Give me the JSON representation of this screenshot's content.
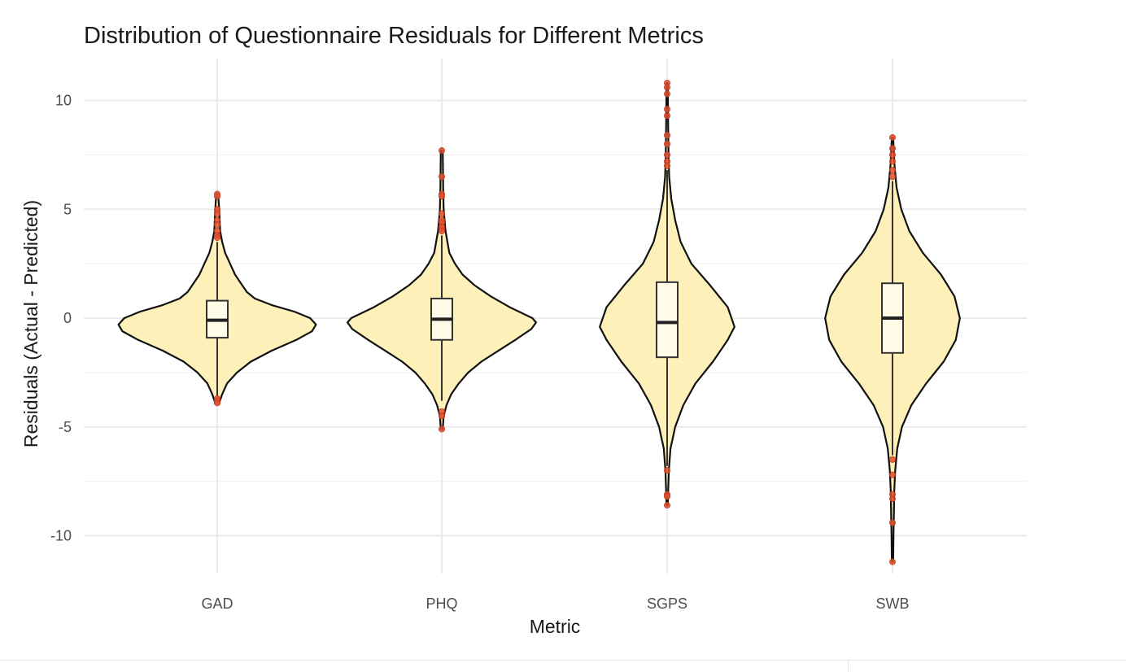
{
  "chart_data": {
    "type": "violin",
    "title": "Distribution of Questionnaire Residuals for Different Metrics",
    "xlabel": "Metric",
    "ylabel": "Residuals (Actual - Predicted)",
    "categories": [
      "GAD",
      "PHQ",
      "SGPS",
      "SWB"
    ],
    "ylim": [
      -12,
      12
    ],
    "yticks": [
      10,
      5,
      0,
      -5,
      -10
    ],
    "ytick_labels": [
      "10",
      "5",
      "0",
      "-5",
      "-10"
    ],
    "grid": true,
    "legend": "none",
    "colors": {
      "violin_fill": "#fdf0b8",
      "violin_stroke": "#111111",
      "box_fill": "#fffbe6",
      "box_stroke": "#333333",
      "outlier": "#e0502e",
      "grid": "#ebebeb"
    },
    "violins": [
      {
        "category": "GAD",
        "density_profile": [
          [
            -3.9,
            0.02
          ],
          [
            -3.5,
            0.05
          ],
          [
            -3.0,
            0.1
          ],
          [
            -2.5,
            0.2
          ],
          [
            -2.0,
            0.34
          ],
          [
            -1.5,
            0.55
          ],
          [
            -1.0,
            0.8
          ],
          [
            -0.6,
            0.96
          ],
          [
            -0.3,
            1.0
          ],
          [
            0.0,
            0.94
          ],
          [
            0.3,
            0.78
          ],
          [
            0.6,
            0.55
          ],
          [
            0.9,
            0.38
          ],
          [
            1.2,
            0.3
          ],
          [
            1.6,
            0.24
          ],
          [
            2.0,
            0.18
          ],
          [
            2.5,
            0.13
          ],
          [
            3.0,
            0.08
          ],
          [
            3.5,
            0.05
          ],
          [
            4.0,
            0.03
          ],
          [
            5.0,
            0.02
          ],
          [
            5.7,
            0.01
          ]
        ],
        "width_scale": 0.44,
        "box": {
          "q1": -0.9,
          "median": -0.1,
          "q3": 0.8,
          "whisker_low": -3.6,
          "whisker_high": 3.5
        },
        "outliers": [
          5.7,
          5.6,
          5.0,
          4.8,
          4.5,
          4.3,
          4.0,
          3.8,
          3.7,
          -3.7,
          -3.8,
          -3.9
        ]
      },
      {
        "category": "PHQ",
        "density_profile": [
          [
            -5.1,
            0.01
          ],
          [
            -4.5,
            0.02
          ],
          [
            -4.0,
            0.05
          ],
          [
            -3.5,
            0.1
          ],
          [
            -3.0,
            0.18
          ],
          [
            -2.5,
            0.28
          ],
          [
            -2.0,
            0.42
          ],
          [
            -1.5,
            0.6
          ],
          [
            -1.0,
            0.78
          ],
          [
            -0.5,
            0.95
          ],
          [
            -0.2,
            1.0
          ],
          [
            0.0,
            0.96
          ],
          [
            0.5,
            0.72
          ],
          [
            1.0,
            0.52
          ],
          [
            1.5,
            0.35
          ],
          [
            2.0,
            0.22
          ],
          [
            2.5,
            0.14
          ],
          [
            3.0,
            0.08
          ],
          [
            4.0,
            0.04
          ],
          [
            5.0,
            0.02
          ],
          [
            6.0,
            0.015
          ],
          [
            7.7,
            0.01
          ]
        ],
        "width_scale": 0.42,
        "box": {
          "q1": -1.0,
          "median": -0.05,
          "q3": 0.9,
          "whisker_low": -3.8,
          "whisker_high": 3.8
        },
        "outliers": [
          7.7,
          6.5,
          5.7,
          5.6,
          4.8,
          4.5,
          4.4,
          4.2,
          4.1,
          4.0,
          -4.3,
          -4.5,
          -5.1
        ]
      },
      {
        "category": "SGPS",
        "density_profile": [
          [
            -8.6,
            0.01
          ],
          [
            -8.0,
            0.015
          ],
          [
            -7.0,
            0.025
          ],
          [
            -6.0,
            0.05
          ],
          [
            -5.0,
            0.12
          ],
          [
            -4.0,
            0.24
          ],
          [
            -3.0,
            0.42
          ],
          [
            -2.0,
            0.68
          ],
          [
            -1.0,
            0.9
          ],
          [
            -0.4,
            1.0
          ],
          [
            0.5,
            0.9
          ],
          [
            1.5,
            0.64
          ],
          [
            2.5,
            0.36
          ],
          [
            3.5,
            0.2
          ],
          [
            4.5,
            0.12
          ],
          [
            5.5,
            0.06
          ],
          [
            6.5,
            0.03
          ],
          [
            7.5,
            0.02
          ],
          [
            9.0,
            0.015
          ],
          [
            10.8,
            0.01
          ]
        ],
        "width_scale": 0.3,
        "box": {
          "q1": -1.8,
          "median": -0.2,
          "q3": 1.65,
          "whisker_low": -6.8,
          "whisker_high": 6.8
        },
        "outliers": [
          10.8,
          10.6,
          10.3,
          9.6,
          9.3,
          8.4,
          8.0,
          7.5,
          7.2,
          7.0,
          -7.0,
          -8.1,
          -8.2,
          -8.6
        ]
      },
      {
        "category": "SWB",
        "density_profile": [
          [
            -11.2,
            0.01
          ],
          [
            -10.0,
            0.015
          ],
          [
            -9.0,
            0.02
          ],
          [
            -8.0,
            0.025
          ],
          [
            -7.0,
            0.04
          ],
          [
            -6.0,
            0.07
          ],
          [
            -5.0,
            0.14
          ],
          [
            -4.0,
            0.28
          ],
          [
            -3.0,
            0.5
          ],
          [
            -2.0,
            0.76
          ],
          [
            -1.0,
            0.94
          ],
          [
            0.0,
            1.0
          ],
          [
            1.0,
            0.92
          ],
          [
            2.0,
            0.72
          ],
          [
            3.0,
            0.45
          ],
          [
            4.0,
            0.25
          ],
          [
            5.0,
            0.13
          ],
          [
            6.0,
            0.06
          ],
          [
            7.0,
            0.03
          ],
          [
            8.3,
            0.01
          ]
        ],
        "width_scale": 0.3,
        "box": {
          "q1": -1.6,
          "median": 0.0,
          "q3": 1.6,
          "whisker_low": -6.3,
          "whisker_high": 6.3
        },
        "outliers": [
          8.3,
          7.8,
          7.5,
          7.2,
          6.8,
          6.5,
          -6.5,
          -7.2,
          -8.1,
          -8.3,
          -9.4,
          -11.2
        ]
      }
    ]
  }
}
